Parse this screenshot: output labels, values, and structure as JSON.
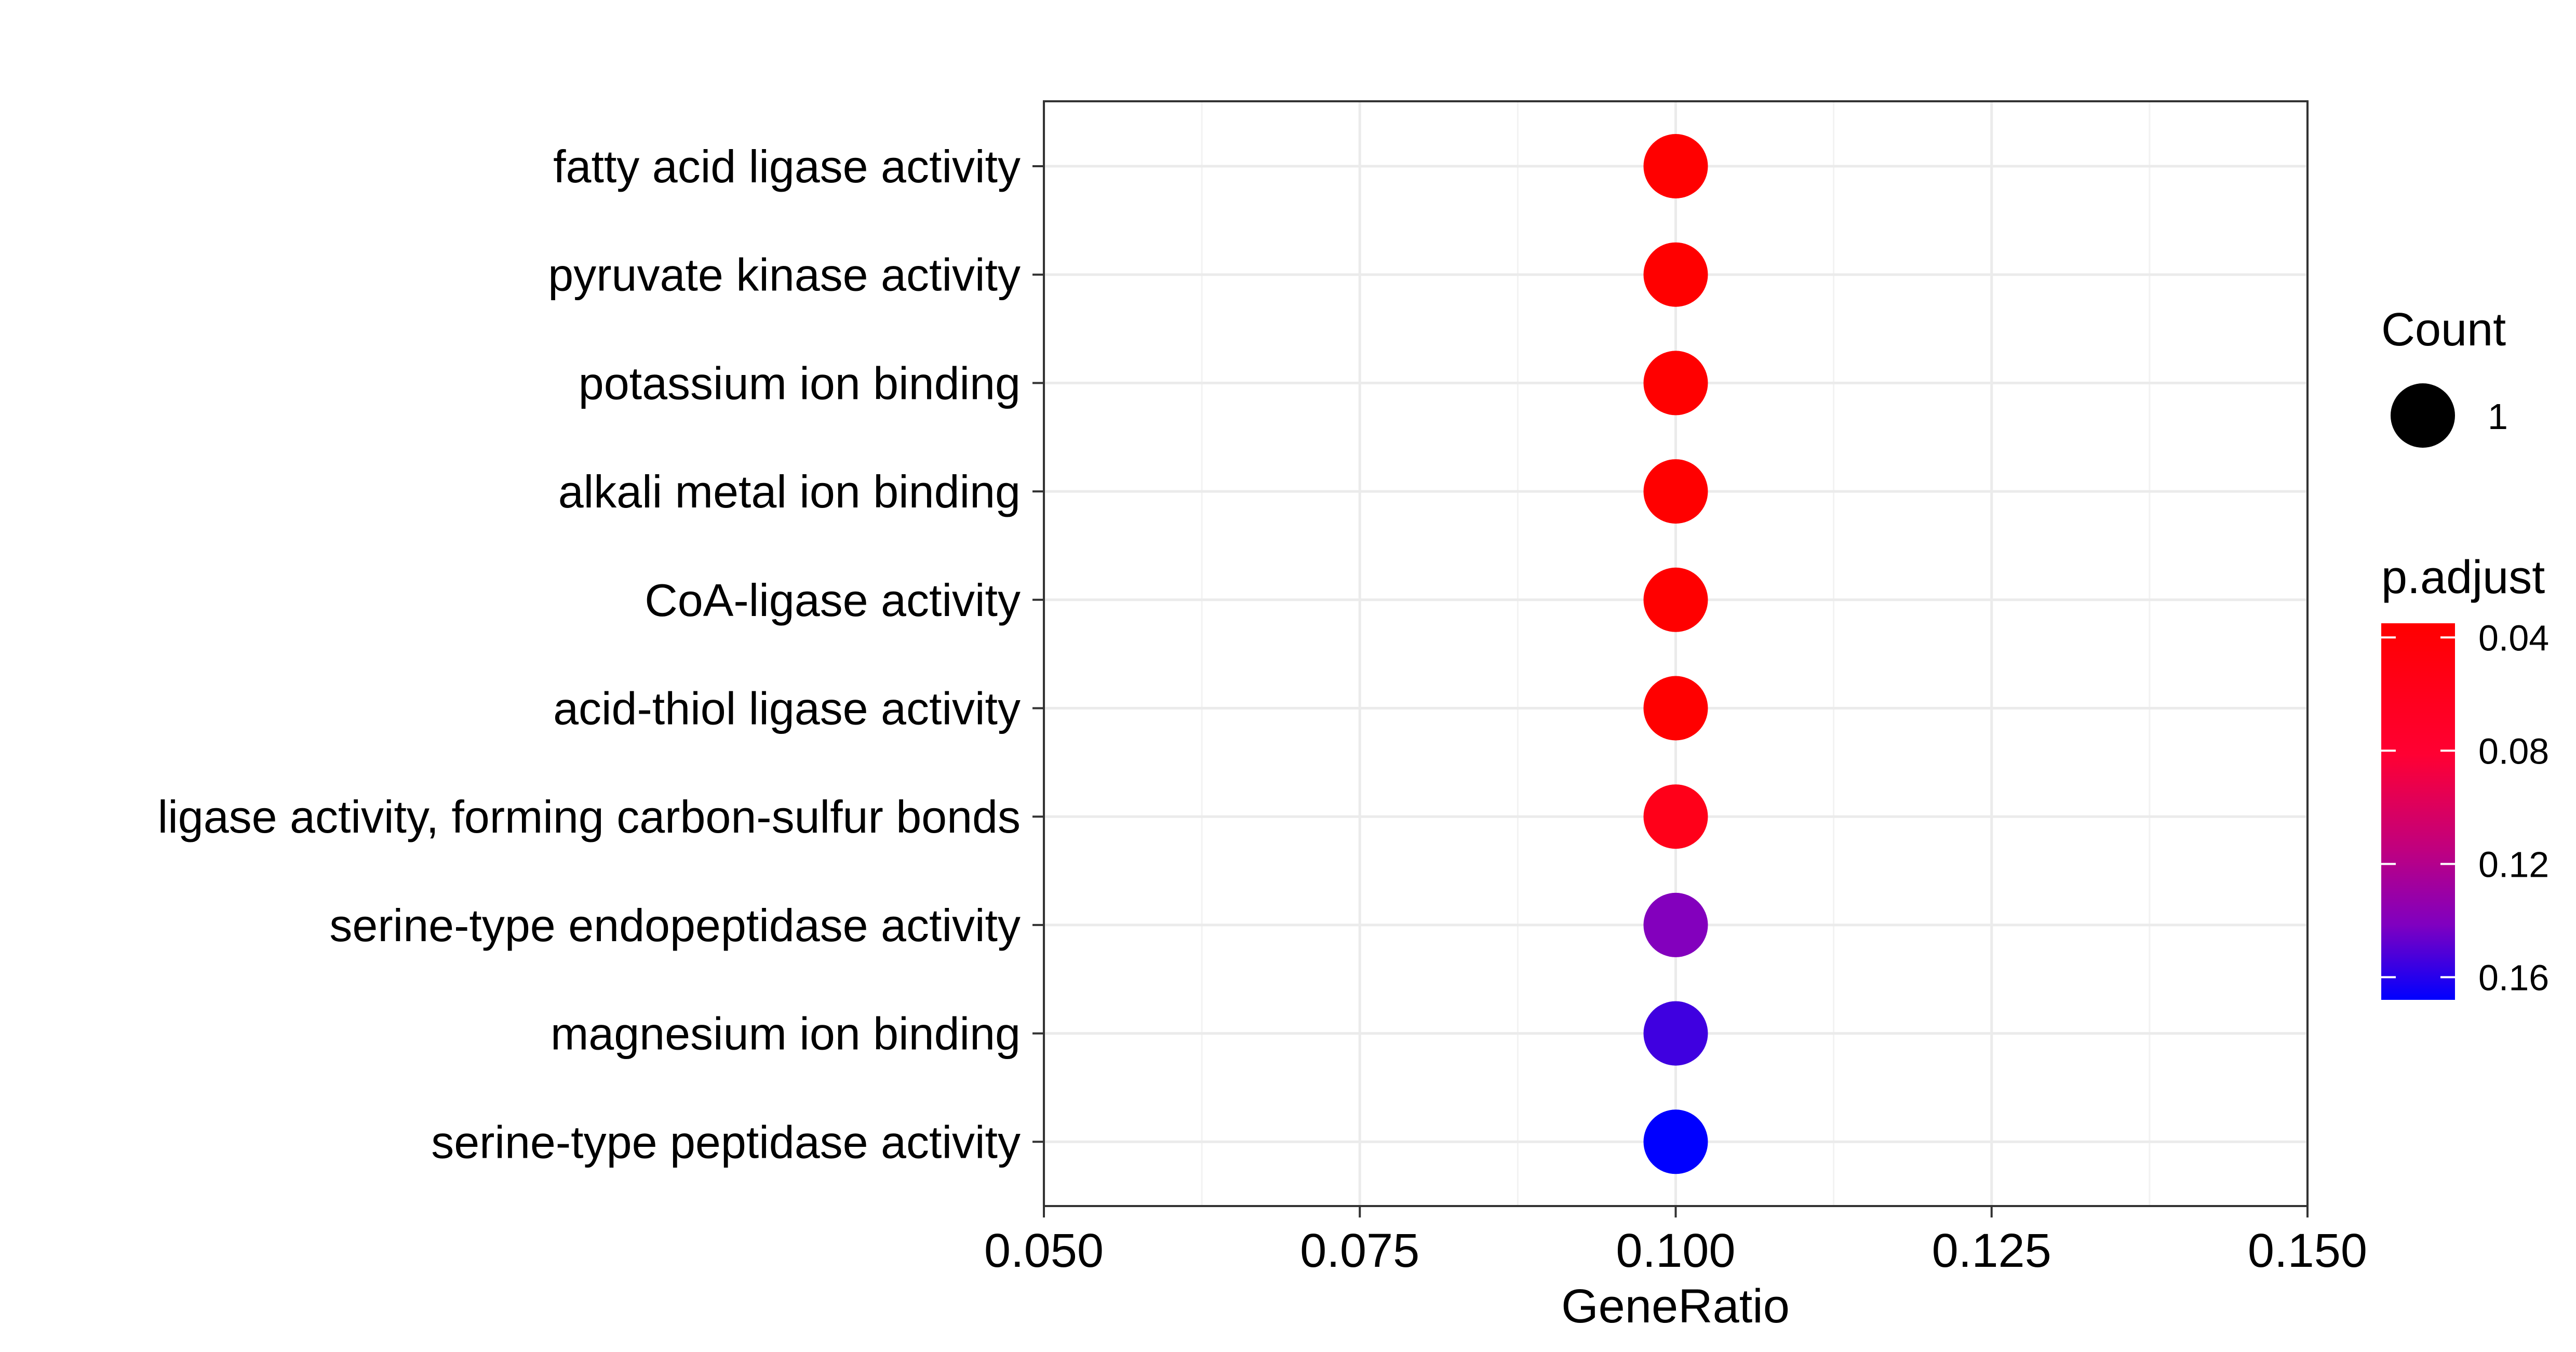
{
  "chart_data": {
    "type": "scatter",
    "xlabel": "GeneRatio",
    "xlim": [
      0.05,
      0.15
    ],
    "x_ticks": [
      0.05,
      0.075,
      0.1,
      0.125,
      0.15
    ],
    "x_tick_labels": [
      "0.050",
      "0.075",
      "0.100",
      "0.125",
      "0.150"
    ],
    "grid": true,
    "categories": [
      "fatty acid ligase activity",
      "pyruvate kinase activity",
      "potassium ion binding",
      "alkali metal ion binding",
      "CoA-ligase activity",
      "acid-thiol ligase activity",
      "ligase activity, forming carbon-sulfur bonds",
      "serine-type endopeptidase activity",
      "magnesium ion binding",
      "serine-type peptidase activity"
    ],
    "points": [
      {
        "term": "fatty acid ligase activity",
        "gene_ratio": 0.1,
        "count": 1,
        "p_adjust": 0.035
      },
      {
        "term": "pyruvate kinase activity",
        "gene_ratio": 0.1,
        "count": 1,
        "p_adjust": 0.035
      },
      {
        "term": "potassium ion binding",
        "gene_ratio": 0.1,
        "count": 1,
        "p_adjust": 0.035
      },
      {
        "term": "alkali metal ion binding",
        "gene_ratio": 0.1,
        "count": 1,
        "p_adjust": 0.035
      },
      {
        "term": "CoA-ligase activity",
        "gene_ratio": 0.1,
        "count": 1,
        "p_adjust": 0.035
      },
      {
        "term": "acid-thiol ligase activity",
        "gene_ratio": 0.1,
        "count": 1,
        "p_adjust": 0.035
      },
      {
        "term": "ligase activity, forming carbon-sulfur bonds",
        "gene_ratio": 0.1,
        "count": 1,
        "p_adjust": 0.058
      },
      {
        "term": "serine-type endopeptidase activity",
        "gene_ratio": 0.1,
        "count": 1,
        "p_adjust": 0.14
      },
      {
        "term": "magnesium ion binding",
        "gene_ratio": 0.1,
        "count": 1,
        "p_adjust": 0.155
      },
      {
        "term": "serine-type peptidase activity",
        "gene_ratio": 0.1,
        "count": 1,
        "p_adjust": 0.168
      }
    ],
    "legend_size": {
      "title": "Count",
      "entries": [
        {
          "label": "1",
          "value": 1
        }
      ]
    },
    "legend_color": {
      "title": "p.adjust",
      "min": 0.035,
      "max": 0.168,
      "low_color": "#ff0000",
      "high_color": "#0000ff",
      "mid_color": "#c0007f",
      "ticks": [
        0.04,
        0.08,
        0.12,
        0.16
      ],
      "tick_labels": [
        "0.04",
        "0.08",
        "0.12",
        "0.16"
      ]
    },
    "legend_position": "right"
  }
}
